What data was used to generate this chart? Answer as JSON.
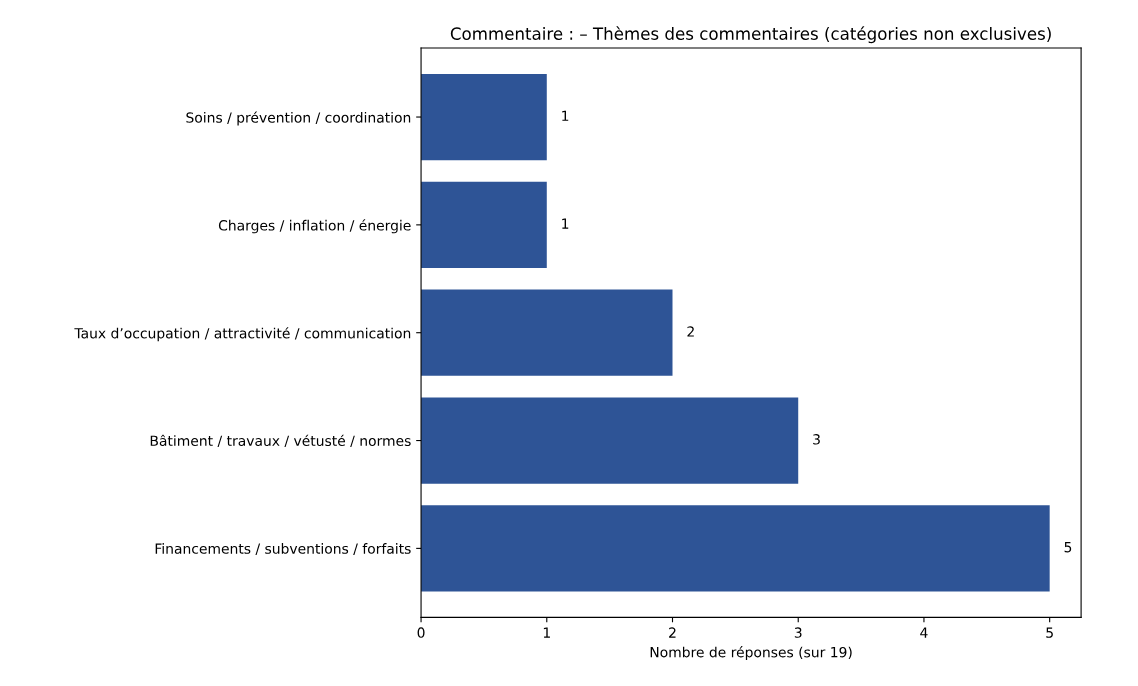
{
  "chart_data": {
    "type": "bar",
    "orientation": "horizontal",
    "title": "Commentaire : – Thèmes des commentaires (catégories non exclusives)",
    "xlabel": "Nombre de réponses (sur 19)",
    "categories": [
      "Soins / prévention / coordination",
      "Charges / inflation / énergie",
      "Taux d’occupation / attractivité / communication",
      "Bâtiment / travaux / vétusté / normes",
      "Financements / subventions / forfaits"
    ],
    "values": [
      1,
      1,
      2,
      3,
      5
    ],
    "color": "#2e5496",
    "xlim": [
      0,
      5.25
    ],
    "xticks": [
      0,
      1,
      2,
      3,
      4,
      5
    ],
    "data_labels": true,
    "grid": false,
    "legend": false
  }
}
